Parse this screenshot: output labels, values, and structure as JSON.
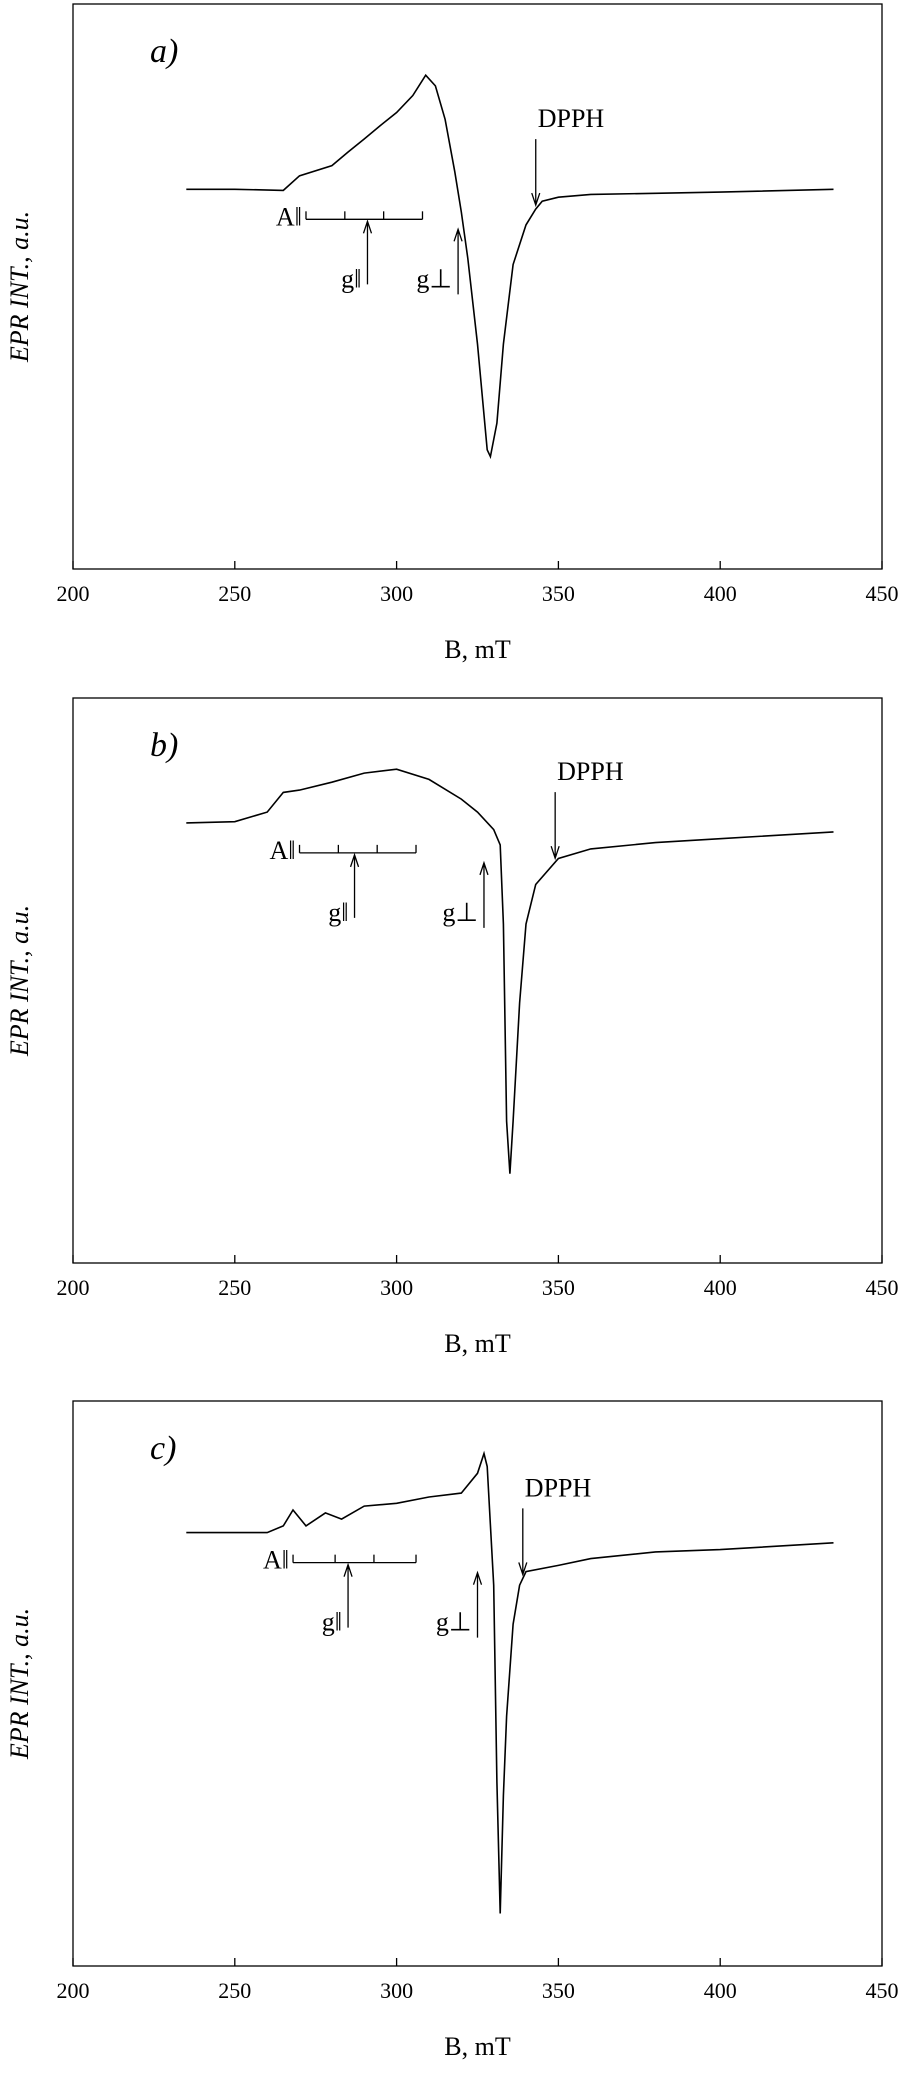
{
  "chart_data": [
    {
      "type": "line",
      "title": "a)",
      "xlabel": "B, mT",
      "ylabel": "EPR INT., a.u.",
      "xlim": [
        200,
        450
      ],
      "xticks": [
        200,
        250,
        300,
        350,
        400,
        450
      ],
      "ylim": [
        0,
        100
      ],
      "color": "#000000",
      "x": [
        235,
        250,
        265,
        270,
        280,
        285,
        290,
        295,
        300,
        305,
        309,
        312,
        315,
        318,
        320,
        322,
        325,
        328,
        329,
        331,
        333,
        336,
        340,
        343,
        345,
        350,
        360,
        380,
        400,
        435
      ],
      "values": [
        67.2,
        67.2,
        67.0,
        69.6,
        71.4,
        73.8,
        76.1,
        78.5,
        80.8,
        83.8,
        87.4,
        85.5,
        79.6,
        70.3,
        63.2,
        55.0,
        39.8,
        21.1,
        19.9,
        25.8,
        39.8,
        53.9,
        60.9,
        63.7,
        65.1,
        65.8,
        66.3,
        66.5,
        66.7,
        67.2
      ],
      "annotations": {
        "hyperfine": {
          "label": "A‖",
          "x": [
            272,
            284,
            296,
            308
          ]
        },
        "g_parallel": {
          "label": "g‖",
          "x": 291
        },
        "g_perp": {
          "label": "g⊥",
          "x": 319
        },
        "dpph": {
          "label": "DPPH",
          "x": 343
        }
      }
    },
    {
      "type": "line",
      "title": "b)",
      "xlabel": "B, mT",
      "ylabel": "EPR INT., a.u.",
      "xlim": [
        200,
        450
      ],
      "xticks": [
        200,
        250,
        300,
        350,
        400,
        450
      ],
      "ylim": [
        0,
        100
      ],
      "color": "#000000",
      "x": [
        235,
        250,
        260,
        265,
        270,
        280,
        290,
        300,
        310,
        320,
        325,
        330,
        332,
        333,
        334,
        335,
        336,
        338,
        340,
        343,
        350,
        360,
        380,
        400,
        435
      ],
      "values": [
        77.9,
        78.1,
        79.8,
        83.3,
        83.7,
        85.1,
        86.7,
        87.4,
        85.6,
        82.1,
        79.8,
        76.7,
        74.0,
        60.0,
        25.1,
        15.8,
        25.1,
        46.0,
        60.0,
        67.0,
        71.6,
        73.3,
        74.4,
        75.1,
        76.3
      ],
      "annotations": {
        "hyperfine": {
          "label": "A‖",
          "x": [
            270,
            282,
            294,
            306
          ]
        },
        "g_parallel": {
          "label": "g‖",
          "x": 287
        },
        "g_perp": {
          "label": "g⊥",
          "x": 327
        },
        "dpph": {
          "label": "DPPH",
          "x": 349
        }
      }
    },
    {
      "type": "line",
      "title": "c)",
      "xlabel": "B, mT",
      "ylabel": "EPR INT., a.u.",
      "xlim": [
        200,
        450
      ],
      "xticks": [
        200,
        250,
        300,
        350,
        400,
        450
      ],
      "ylim": [
        0,
        100
      ],
      "color": "#000000",
      "x": [
        235,
        260,
        265,
        268,
        272,
        278,
        283,
        290,
        300,
        310,
        320,
        325,
        327,
        328,
        330,
        331,
        332,
        333,
        334,
        336,
        338,
        340,
        350,
        360,
        380,
        400,
        435
      ],
      "values": [
        76.7,
        76.7,
        77.9,
        80.7,
        77.9,
        80.2,
        79.1,
        81.4,
        81.9,
        83.0,
        83.7,
        87.2,
        90.7,
        88.4,
        67.4,
        32.6,
        9.3,
        30.2,
        44.2,
        60.5,
        67.4,
        69.8,
        70.9,
        72.1,
        73.3,
        73.7,
        74.9
      ],
      "annotations": {
        "hyperfine": {
          "label": "A‖",
          "x": [
            268,
            281,
            293,
            306
          ]
        },
        "g_parallel": {
          "label": "g‖",
          "x": 285
        },
        "g_perp": {
          "label": "g⊥",
          "x": 325
        },
        "dpph": {
          "label": "DPPH",
          "x": 339
        }
      }
    }
  ]
}
